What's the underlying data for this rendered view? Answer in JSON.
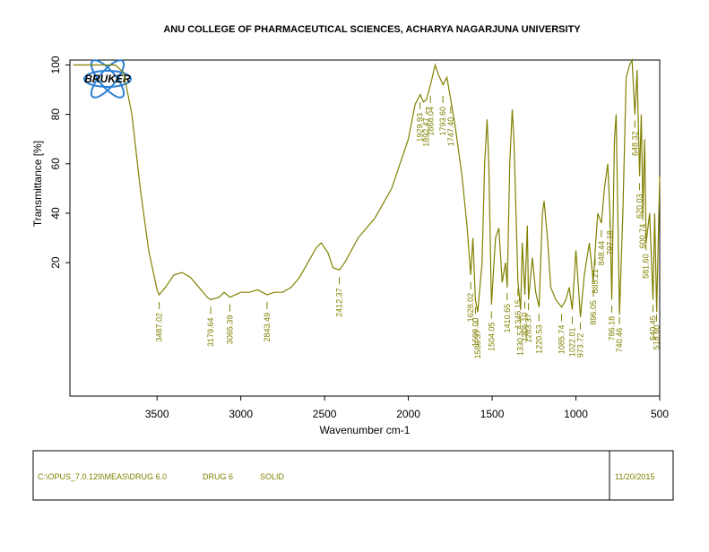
{
  "chart_data": {
    "type": "line",
    "title": "ANU COLLEGE OF PHARMACEUTICAL SCIENCES, ACHARYA NAGARJUNA UNIVERSITY",
    "logo_text": "BRUKER",
    "x_label": "Wavenumber cm-1",
    "y_label": "Transmittance [%]",
    "xlim": [
      4020,
      500
    ],
    "ylim": [
      -34,
      102
    ],
    "xticks": [
      3500,
      3000,
      2500,
      2000,
      1500,
      1000,
      500
    ],
    "yticks": [
      20,
      40,
      60,
      80,
      100
    ],
    "series": [
      {
        "name": "DRUG 6",
        "color": "#808000",
        "x": [
          4000,
          3750,
          3700,
          3650,
          3600,
          3550,
          3500,
          3487,
          3450,
          3400,
          3350,
          3300,
          3250,
          3200,
          3180,
          3130,
          3100,
          3065,
          3000,
          2950,
          2900,
          2843,
          2800,
          2750,
          2700,
          2650,
          2600,
          2550,
          2520,
          2480,
          2450,
          2412,
          2380,
          2300,
          2200,
          2100,
          2000,
          1960,
          1929,
          1910,
          1892,
          1868,
          1840,
          1820,
          1793,
          1770,
          1747,
          1720,
          1680,
          1650,
          1628,
          1615,
          1600,
          1586,
          1560,
          1545,
          1530,
          1520,
          1504,
          1480,
          1460,
          1440,
          1420,
          1410,
          1395,
          1380,
          1370,
          1346,
          1330,
          1320,
          1305,
          1290,
          1283,
          1260,
          1240,
          1220,
          1200,
          1190,
          1170,
          1150,
          1120,
          1085,
          1060,
          1040,
          1022,
          1000,
          990,
          973,
          950,
          920,
          896,
          885,
          870,
          848,
          830,
          810,
          797,
          786,
          770,
          760,
          740,
          720,
          700,
          680,
          665,
          648,
          635,
          620,
          610,
          600,
          590,
          581,
          560,
          540,
          530,
          518,
          505,
          500
        ],
        "values": [
          100,
          100,
          97,
          80,
          50,
          25,
          9,
          7,
          10,
          15,
          16,
          14,
          10,
          6,
          5,
          6,
          8,
          6,
          8,
          8,
          9,
          7,
          8,
          8,
          10,
          14,
          20,
          26,
          28,
          24,
          18,
          17,
          20,
          30,
          38,
          50,
          70,
          84,
          88,
          85,
          86,
          92,
          100,
          96,
          92,
          95,
          86,
          75,
          55,
          35,
          15,
          30,
          5,
          0,
          20,
          60,
          78,
          60,
          3,
          30,
          34,
          12,
          20,
          10,
          60,
          82,
          70,
          12,
          1,
          28,
          7,
          35,
          5,
          22,
          8,
          2,
          40,
          45,
          30,
          10,
          5,
          2,
          5,
          10,
          1,
          25,
          15,
          -2,
          15,
          28,
          12,
          25,
          40,
          36,
          50,
          60,
          40,
          5,
          70,
          80,
          -1,
          40,
          95,
          100,
          102,
          80,
          98,
          55,
          80,
          40,
          70,
          28,
          40,
          5,
          40,
          0,
          40,
          55
        ]
      }
    ],
    "peaks": [
      3487.02,
      3179.64,
      3065.39,
      2843.49,
      2412.37,
      1929.93,
      1892.47,
      1868.04,
      {
        "value": 1793.6,
        "label": "1793.60"
      },
      {
        "value": 1747.4,
        "label": "1747.40"
      },
      1628.02,
      {
        "value": 1600,
        "label": "1600.00"
      },
      1586.37,
      1504.05,
      1410.65,
      1346.15,
      1330.57,
      {
        "value": 1305.1,
        "label": "1305.10"
      },
      1283.37,
      1220.53,
      1085.74,
      1022.01,
      973.72,
      896.05,
      885.21,
      848.44,
      797.18,
      786.18,
      740.46,
      648.32,
      620.03,
      600.74,
      {
        "value": 581.6,
        "label": "581.60"
      },
      540.45,
      {
        "value": 518.6,
        "label": "518.60"
      }
    ],
    "footer": {
      "path": "C:\\OPUS_7.0.129\\MEAS\\DRUG 6.0",
      "sample": "DRUG 6",
      "form": "SOLID",
      "date": "11/20/2015"
    }
  }
}
